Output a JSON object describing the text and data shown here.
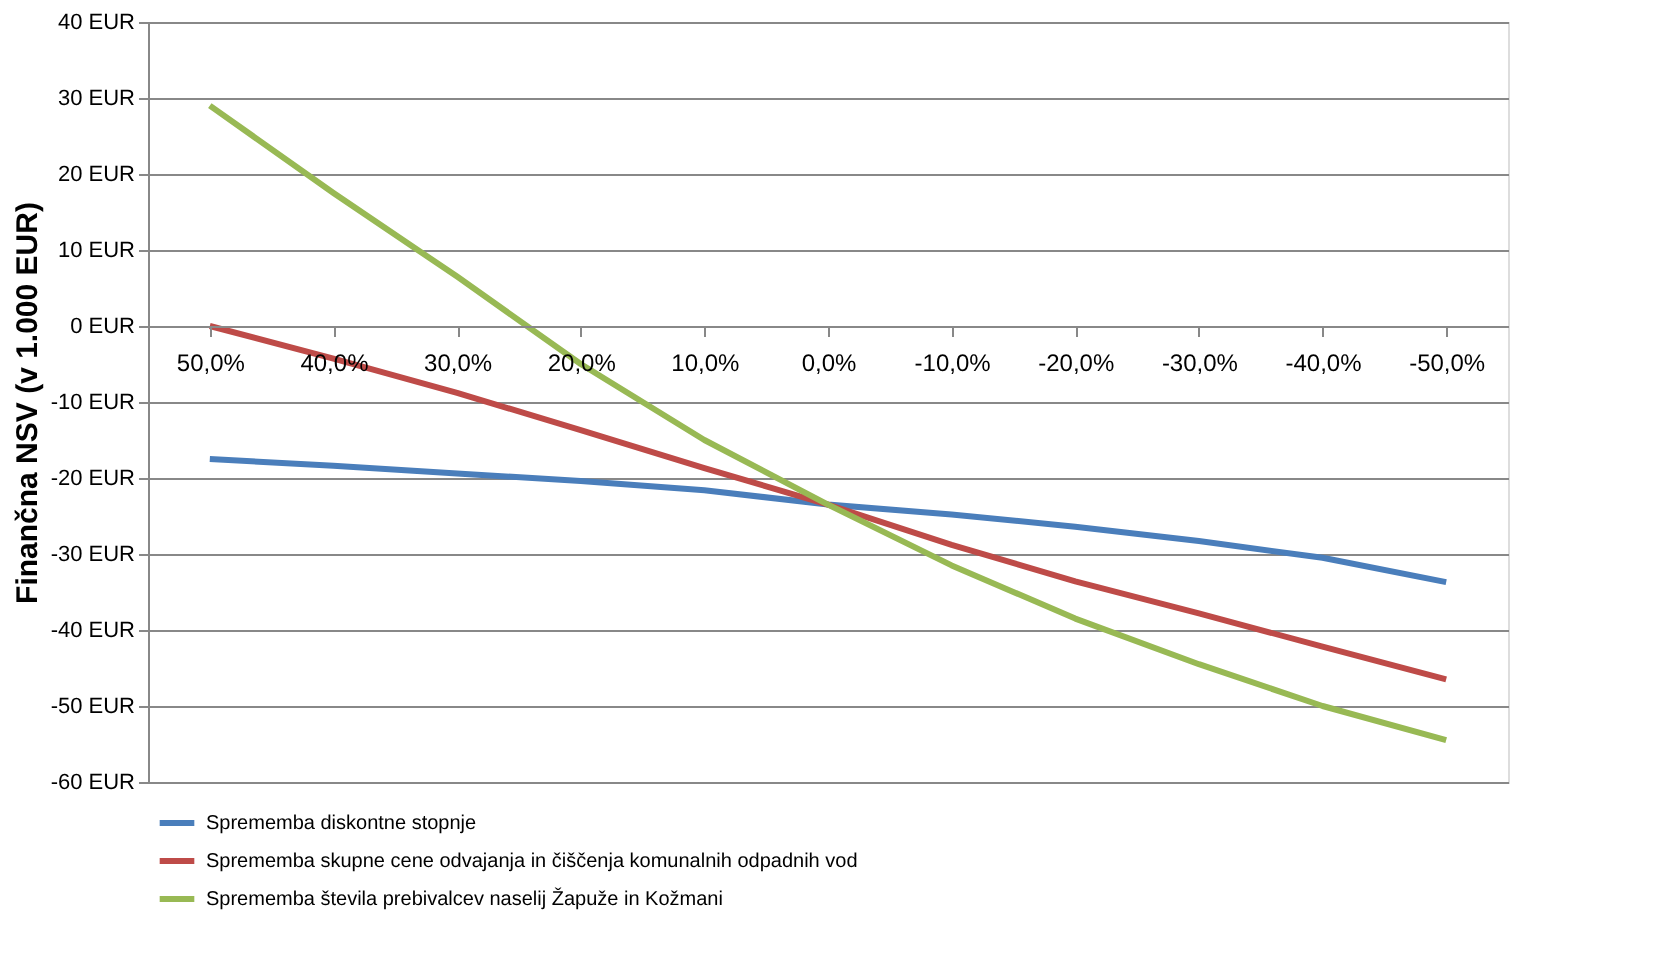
{
  "chart_data": {
    "type": "line",
    "ylabel": "Finančna NSV (v 1.000 EUR)",
    "categories": [
      "50,0%",
      "40,0%",
      "30,0%",
      "20,0%",
      "10,0%",
      "0,0%",
      "-10,0%",
      "-20,0%",
      "-30,0%",
      "-40,0%",
      "-50,0%"
    ],
    "series": [
      {
        "name": "Sprememba diskontne stopnje",
        "color": "#4a7ebb",
        "values": [
          -17.5,
          -18.4,
          -19.4,
          -20.4,
          -21.6,
          -23.5,
          -24.8,
          -26.4,
          -28.3,
          -30.5,
          -33.7
        ]
      },
      {
        "name": "Sprememba skupne cene odvajanja in čiščenja komunalnih odpadnih vod",
        "color": "#be4b48",
        "values": [
          0,
          -4.3,
          -8.8,
          -13.7,
          -18.7,
          -23.5,
          -28.8,
          -33.6,
          -37.8,
          -42.2,
          -46.5
        ]
      },
      {
        "name": "Sprememba števila prebivalcev naselij Žapuže in Kožmani",
        "color": "#98b954",
        "values": [
          29,
          17.5,
          6.5,
          -5,
          -15,
          -23.5,
          -31.5,
          -38.5,
          -44.5,
          -50,
          -54.5
        ]
      }
    ],
    "ylim": [
      -60,
      40
    ],
    "yticks": [
      {
        "value": -60,
        "label": "-60 EUR"
      },
      {
        "value": -50,
        "label": "-50 EUR"
      },
      {
        "value": -40,
        "label": "-40 EUR"
      },
      {
        "value": -30,
        "label": "-30 EUR"
      },
      {
        "value": -20,
        "label": "-20 EUR"
      },
      {
        "value": -10,
        "label": "-10 EUR"
      },
      {
        "value": 0,
        "label": "0 EUR"
      },
      {
        "value": 10,
        "label": "10 EUR"
      },
      {
        "value": 20,
        "label": "20 EUR"
      },
      {
        "value": 30,
        "label": "30 EUR"
      },
      {
        "value": 40,
        "label": "40 EUR"
      }
    ],
    "grid": "y",
    "legend": "bottom",
    "marker": "none",
    "line_style": "solid"
  }
}
